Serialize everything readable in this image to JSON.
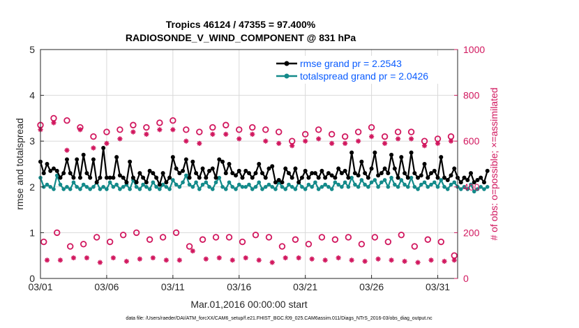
{
  "chart_data": {
    "type": "line",
    "title_line1": "Tropics 46124 / 47355 = 97.400%",
    "title_line2": "RADIOSONDE_V_WIND_COMPONENT @ 831 hPa",
    "xlabel": "Mar.01,2016 00:00:00 start",
    "ylabel": "rmse and totalspread",
    "y2label": "# of obs: o=possible; ×=assimilated",
    "footnote": "data file: /Users/raeder/DAI/ATM_forcXX/CAM6_setup/f.e21.FHIST_BGC.f09_025.CAM6assim.011/Diags_NTrS_2016-03/obs_diag_output.nc",
    "xlim": [
      0,
      31.5
    ],
    "ylim": [
      0,
      5
    ],
    "y2lim": [
      0,
      1000
    ],
    "xticks": [
      0,
      5,
      10,
      15,
      20,
      25,
      30
    ],
    "xtick_labels": [
      "03/01",
      "03/06",
      "03/11",
      "03/16",
      "03/21",
      "03/26",
      "03/31"
    ],
    "yticks": [
      0,
      1,
      2,
      3,
      4,
      5
    ],
    "ytick_labels": [
      "0",
      "1",
      "2",
      "3",
      "4",
      "5"
    ],
    "y2ticks": [
      0,
      200,
      400,
      600,
      800,
      1000
    ],
    "y2tick_labels": [
      "0",
      "200",
      "400",
      "600",
      "800",
      "1000"
    ],
    "legend": [
      {
        "name": "rmse grand pr = 2.2543",
        "color": "#000000"
      },
      {
        "name": "totalspread grand pr = 2.0426",
        "color": "#138a8a"
      }
    ],
    "colors": {
      "rmse": "#000000",
      "spread": "#138a8a",
      "obs": "#d1175e",
      "legend_text": "#0a5cff"
    },
    "x_step_days": 0.25,
    "rmse": [
      2.55,
      2.3,
      2.5,
      2.35,
      2.4,
      2.35,
      2.2,
      2.3,
      2.6,
      2.3,
      2.2,
      2.6,
      2.2,
      2.7,
      2.3,
      2.2,
      2.6,
      2.1,
      2.2,
      2.85,
      2.2,
      2.2,
      2.2,
      2.65,
      2.25,
      2.2,
      2.1,
      2.55,
      2.2,
      2.1,
      2.3,
      2.2,
      2.1,
      2.35,
      2.3,
      2.2,
      2.05,
      2.3,
      2.1,
      2.2,
      2.65,
      2.4,
      2.3,
      2.35,
      2.6,
      2.2,
      2.55,
      2.3,
      2.2,
      2.4,
      2.2,
      2.35,
      2.4,
      2.2,
      2.6,
      2.55,
      2.3,
      2.5,
      2.3,
      2.25,
      2.35,
      2.2,
      2.35,
      2.3,
      2.2,
      2.3,
      2.5,
      2.3,
      2.2,
      2.4,
      2.45,
      2.1,
      2.15,
      2.1,
      2.4,
      2.3,
      2.2,
      2.4,
      2.1,
      2.2,
      2.35,
      2.2,
      2.3,
      2.3,
      2.2,
      2.35,
      2.2,
      2.3,
      2.25,
      2.2,
      2.4,
      2.3,
      2.35,
      2.2,
      2.75,
      2.3,
      2.25,
      2.55,
      2.3,
      2.2,
      2.4,
      2.75,
      2.25,
      2.3,
      2.4,
      2.3,
      2.7,
      2.4,
      2.2,
      2.65,
      2.3,
      2.2,
      2.75,
      2.3,
      2.2,
      2.25,
      2.5,
      2.2,
      2.3,
      2.35,
      2.2,
      2.65,
      2.2,
      2.15,
      2.25,
      2.4,
      2.2,
      2.1,
      2.2,
      2.15,
      2.3,
      2.1,
      2.15,
      2.2,
      2.1,
      2.35
    ],
    "spread": [
      2.2,
      2.0,
      2.05,
      2.0,
      1.95,
      2.25,
      2.05,
      1.95,
      2.0,
      1.95,
      2.1,
      2.0,
      1.95,
      2.05,
      2.0,
      1.95,
      2.0,
      2.1,
      1.95,
      2.0,
      1.95,
      2.1,
      2.0,
      2.05,
      1.95,
      2.0,
      2.05,
      1.95,
      2.15,
      2.0,
      1.95,
      2.05,
      2.0,
      1.95,
      2.1,
      2.0,
      1.95,
      2.05,
      2.0,
      1.95,
      2.15,
      2.05,
      2.0,
      2.1,
      2.25,
      2.05,
      2.0,
      2.1,
      1.95,
      2.05,
      2.1,
      2.0,
      1.95,
      2.1,
      2.2,
      2.0,
      1.95,
      2.1,
      2.0,
      1.95,
      2.05,
      2.0,
      2.0,
      2.05,
      1.95,
      2.0,
      2.1,
      1.95,
      2.0,
      2.05,
      2.0,
      1.95,
      2.1,
      2.0,
      1.95,
      2.05,
      2.0,
      1.95,
      2.1,
      2.0,
      1.95,
      2.05,
      2.0,
      2.1,
      1.95,
      2.0,
      2.05,
      2.0,
      1.95,
      2.1,
      2.05,
      2.0,
      2.1,
      2.0,
      2.2,
      2.05,
      2.0,
      2.15,
      2.05,
      2.0,
      2.1,
      2.15,
      2.0,
      2.1,
      2.15,
      2.0,
      2.2,
      2.05,
      2.0,
      2.15,
      2.05,
      2.0,
      2.2,
      2.0,
      1.95,
      2.05,
      2.1,
      2.0,
      2.05,
      2.1,
      2.0,
      2.15,
      2.0,
      1.95,
      2.05,
      2.1,
      2.0,
      1.95,
      2.0,
      1.95,
      2.05,
      1.9,
      1.95,
      2.0,
      1.95,
      2.0
    ],
    "obs_possible": [
      {
        "day": 0.0,
        "value": 670
      },
      {
        "day": 0.25,
        "value": 160
      },
      {
        "day": 1.0,
        "value": 700
      },
      {
        "day": 1.25,
        "value": 200
      },
      {
        "day": 2.0,
        "value": 690
      },
      {
        "day": 2.25,
        "value": 140
      },
      {
        "day": 3.0,
        "value": 660
      },
      {
        "day": 3.25,
        "value": 150
      },
      {
        "day": 4.0,
        "value": 620
      },
      {
        "day": 4.25,
        "value": 180
      },
      {
        "day": 5.0,
        "value": 640
      },
      {
        "day": 5.25,
        "value": 160
      },
      {
        "day": 6.0,
        "value": 650
      },
      {
        "day": 6.25,
        "value": 190
      },
      {
        "day": 7.0,
        "value": 670
      },
      {
        "day": 7.25,
        "value": 200
      },
      {
        "day": 8.0,
        "value": 660
      },
      {
        "day": 8.25,
        "value": 170
      },
      {
        "day": 9.0,
        "value": 680
      },
      {
        "day": 9.25,
        "value": 180
      },
      {
        "day": 10.0,
        "value": 690
      },
      {
        "day": 10.25,
        "value": 200
      },
      {
        "day": 11.0,
        "value": 650
      },
      {
        "day": 11.25,
        "value": 140
      },
      {
        "day": 12.0,
        "value": 640
      },
      {
        "day": 12.25,
        "value": 170
      },
      {
        "day": 13.0,
        "value": 660
      },
      {
        "day": 13.25,
        "value": 180
      },
      {
        "day": 14.0,
        "value": 670
      },
      {
        "day": 14.25,
        "value": 180
      },
      {
        "day": 15.0,
        "value": 650
      },
      {
        "day": 15.25,
        "value": 160
      },
      {
        "day": 16.0,
        "value": 660
      },
      {
        "day": 16.25,
        "value": 190
      },
      {
        "day": 17.0,
        "value": 650
      },
      {
        "day": 17.25,
        "value": 180
      },
      {
        "day": 18.0,
        "value": 640
      },
      {
        "day": 18.25,
        "value": 140
      },
      {
        "day": 19.0,
        "value": 600
      },
      {
        "day": 19.25,
        "value": 170
      },
      {
        "day": 20.0,
        "value": 630
      },
      {
        "day": 20.25,
        "value": 150
      },
      {
        "day": 21.0,
        "value": 650
      },
      {
        "day": 21.25,
        "value": 180
      },
      {
        "day": 22.0,
        "value": 630
      },
      {
        "day": 22.25,
        "value": 170
      },
      {
        "day": 23.0,
        "value": 620
      },
      {
        "day": 23.25,
        "value": 180
      },
      {
        "day": 24.0,
        "value": 640
      },
      {
        "day": 24.25,
        "value": 150
      },
      {
        "day": 25.0,
        "value": 660
      },
      {
        "day": 25.25,
        "value": 180
      },
      {
        "day": 26.0,
        "value": 620
      },
      {
        "day": 26.25,
        "value": 160
      },
      {
        "day": 27.0,
        "value": 640
      },
      {
        "day": 27.25,
        "value": 190
      },
      {
        "day": 28.0,
        "value": 640
      },
      {
        "day": 28.25,
        "value": 140
      },
      {
        "day": 29.0,
        "value": 600
      },
      {
        "day": 29.25,
        "value": 170
      },
      {
        "day": 30.0,
        "value": 610
      },
      {
        "day": 30.25,
        "value": 160
      },
      {
        "day": 31.0,
        "value": 620
      },
      {
        "day": 31.25,
        "value": 100
      }
    ],
    "obs_assimilated": [
      {
        "day": 0.0,
        "value": 650
      },
      {
        "day": 0.5,
        "value": 80
      },
      {
        "day": 1.0,
        "value": 680
      },
      {
        "day": 1.5,
        "value": 80
      },
      {
        "day": 2.0,
        "value": 560
      },
      {
        "day": 2.5,
        "value": 90
      },
      {
        "day": 3.0,
        "value": 650
      },
      {
        "day": 3.5,
        "value": 90
      },
      {
        "day": 4.0,
        "value": 570
      },
      {
        "day": 4.5,
        "value": 70
      },
      {
        "day": 5.0,
        "value": 590
      },
      {
        "day": 5.5,
        "value": 90
      },
      {
        "day": 6.0,
        "value": 610
      },
      {
        "day": 6.5,
        "value": 75
      },
      {
        "day": 7.0,
        "value": 640
      },
      {
        "day": 7.5,
        "value": 85
      },
      {
        "day": 8.0,
        "value": 630
      },
      {
        "day": 8.5,
        "value": 90
      },
      {
        "day": 9.0,
        "value": 650
      },
      {
        "day": 9.5,
        "value": 80
      },
      {
        "day": 10.0,
        "value": 650
      },
      {
        "day": 10.5,
        "value": 80
      },
      {
        "day": 11.0,
        "value": 600
      },
      {
        "day": 11.5,
        "value": 120
      },
      {
        "day": 12.0,
        "value": 590
      },
      {
        "day": 12.5,
        "value": 85
      },
      {
        "day": 13.0,
        "value": 630
      },
      {
        "day": 13.5,
        "value": 90
      },
      {
        "day": 14.0,
        "value": 630
      },
      {
        "day": 14.5,
        "value": 80
      },
      {
        "day": 15.0,
        "value": 610
      },
      {
        "day": 15.5,
        "value": 90
      },
      {
        "day": 16.0,
        "value": 630
      },
      {
        "day": 16.5,
        "value": 80
      },
      {
        "day": 17.0,
        "value": 600
      },
      {
        "day": 17.5,
        "value": 70
      },
      {
        "day": 18.0,
        "value": 590
      },
      {
        "day": 18.5,
        "value": 90
      },
      {
        "day": 19.0,
        "value": 580
      },
      {
        "day": 19.5,
        "value": 90
      },
      {
        "day": 20.0,
        "value": 600
      },
      {
        "day": 20.5,
        "value": 85
      },
      {
        "day": 21.0,
        "value": 610
      },
      {
        "day": 21.5,
        "value": 80
      },
      {
        "day": 22.0,
        "value": 590
      },
      {
        "day": 22.5,
        "value": 90
      },
      {
        "day": 23.0,
        "value": 590
      },
      {
        "day": 23.5,
        "value": 80
      },
      {
        "day": 24.0,
        "value": 600
      },
      {
        "day": 24.5,
        "value": 75
      },
      {
        "day": 25.0,
        "value": 620
      },
      {
        "day": 25.5,
        "value": 85
      },
      {
        "day": 26.0,
        "value": 590
      },
      {
        "day": 26.5,
        "value": 80
      },
      {
        "day": 27.0,
        "value": 610
      },
      {
        "day": 27.5,
        "value": 75
      },
      {
        "day": 28.0,
        "value": 610
      },
      {
        "day": 28.5,
        "value": 70
      },
      {
        "day": 29.0,
        "value": 580
      },
      {
        "day": 29.5,
        "value": 80
      },
      {
        "day": 30.0,
        "value": 590
      },
      {
        "day": 30.5,
        "value": 75
      },
      {
        "day": 31.0,
        "value": 600
      },
      {
        "day": 31.25,
        "value": 80
      }
    ]
  }
}
